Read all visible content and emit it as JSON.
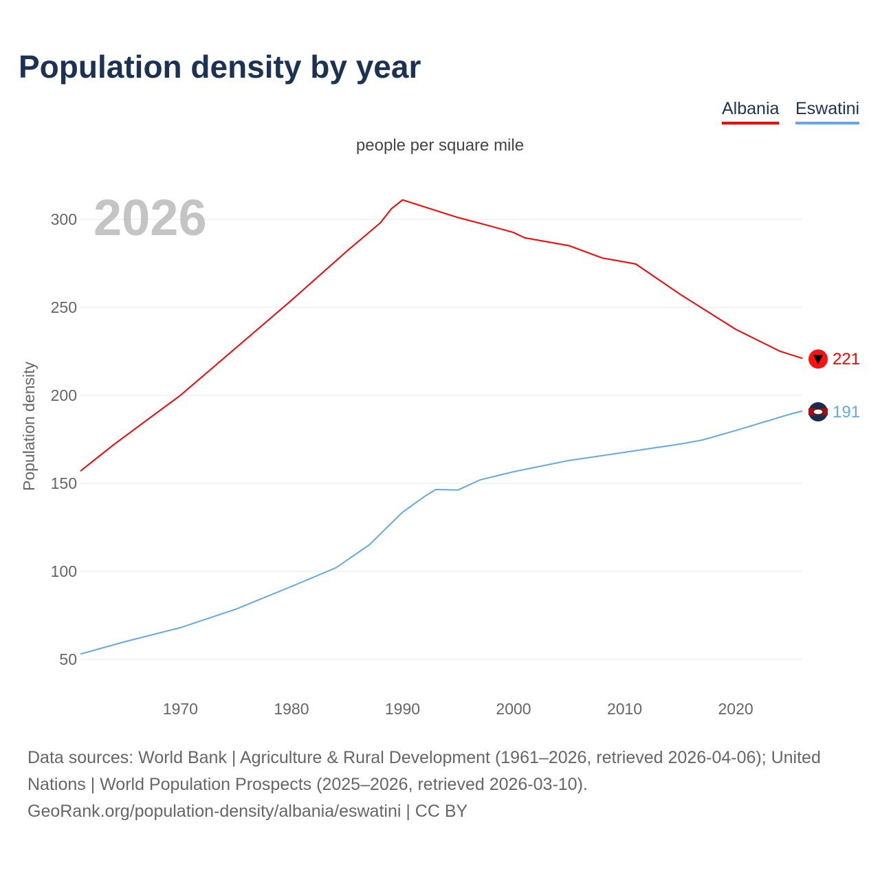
{
  "title": "Population density by year",
  "subtitle": "people per square mile",
  "year_label": "2026",
  "footer": {
    "line1": "Data sources: World Bank | Agriculture & Rural Development (1961–2026, retrieved 2026-04-06); United Nations | World Population Prospects (2025–2026, retrieved 2026-03-10).",
    "line2": "GeoRank.org/population-density/albania/eswatini | CC BY"
  },
  "chart_data": {
    "type": "line",
    "title": "Population density by year",
    "xlabel": "",
    "ylabel": "Population density",
    "xlim": [
      1961,
      2026
    ],
    "ylim": [
      30,
      330
    ],
    "xticks": [
      1970,
      1980,
      1990,
      2000,
      2010,
      2020
    ],
    "yticks": [
      50,
      100,
      150,
      200,
      250,
      300
    ],
    "grid": true,
    "legend": "top-right",
    "series": [
      {
        "name": "Albania",
        "color": "#ff0000",
        "end_label": "221",
        "x": [
          1961,
          1964,
          1967,
          1970,
          1975,
          1980,
          1985,
          1988,
          1989,
          1990,
          1993,
          1995,
          1998,
          2000,
          2001,
          2005,
          2008,
          2010,
          2011,
          2015,
          2020,
          2024,
          2026
        ],
        "y": [
          157,
          172,
          186,
          200,
          227,
          254,
          282,
          298,
          306,
          311,
          305,
          301,
          296,
          292.5,
          289.5,
          285,
          278,
          275.8,
          274.6,
          257.4,
          237.5,
          225,
          221
        ]
      },
      {
        "name": "Eswatini",
        "color": "#64a8ea",
        "end_label": "191",
        "x": [
          1961,
          1965,
          1970,
          1975,
          1980,
          1984,
          1987,
          1990,
          1992,
          1993,
          1995,
          1997,
          2000,
          2005,
          2010,
          2015,
          2017,
          2020,
          2025,
          2026
        ],
        "y": [
          53,
          60,
          68,
          78.5,
          91.4,
          102,
          115,
          133.6,
          142.6,
          146.5,
          146.2,
          152,
          156.6,
          163,
          167.6,
          172.3,
          174.6,
          180,
          189.5,
          191
        ]
      }
    ]
  }
}
